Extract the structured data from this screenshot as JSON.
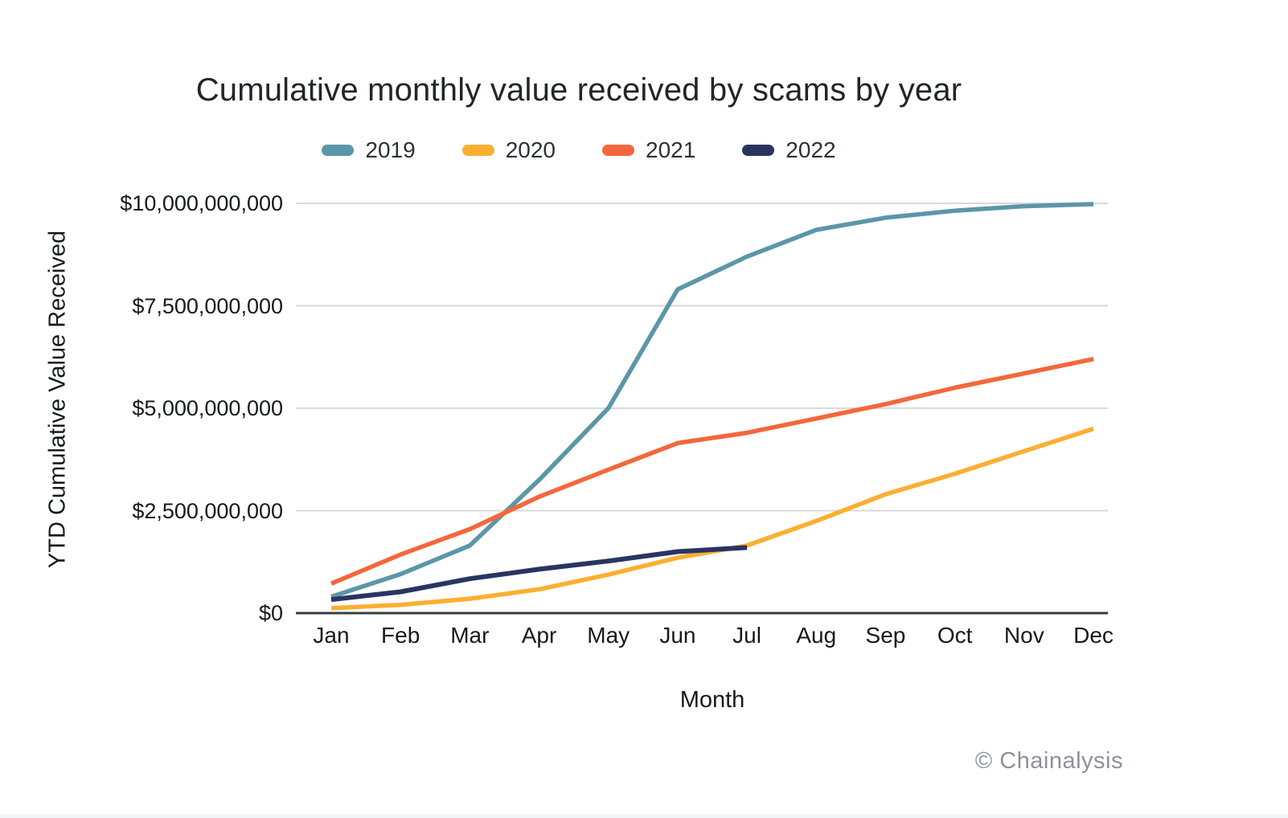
{
  "footer": {
    "credit": "© Chainalysis"
  },
  "chart_data": {
    "type": "line",
    "title": "Cumulative monthly value received by scams by year",
    "xlabel": "Month",
    "ylabel": "YTD Cumulative Value Received",
    "categories": [
      "Jan",
      "Feb",
      "Mar",
      "Apr",
      "May",
      "Jun",
      "Jul",
      "Aug",
      "Sep",
      "Oct",
      "Nov",
      "Dec"
    ],
    "y_axis": {
      "min": 0,
      "max": 10000000000,
      "tick_values": [
        0,
        2500000000,
        5000000000,
        7500000000,
        10000000000
      ],
      "tick_labels": [
        "$0",
        "$2,500,000,000",
        "$5,000,000,000",
        "$7,500,000,000",
        "$10,000,000,000"
      ]
    },
    "grid": "horizontal",
    "legend_position": "top",
    "series": [
      {
        "name": "2019",
        "color": "#5b96a9",
        "values": [
          400000000,
          950000000,
          1650000000,
          3250000000,
          5000000000,
          7900000000,
          8700000000,
          9350000000,
          9650000000,
          9820000000,
          9930000000,
          9980000000
        ]
      },
      {
        "name": "2020",
        "color": "#fbaf31",
        "values": [
          120000000,
          200000000,
          350000000,
          580000000,
          940000000,
          1350000000,
          1650000000,
          2250000000,
          2900000000,
          3400000000,
          3950000000,
          4500000000
        ]
      },
      {
        "name": "2021",
        "color": "#f4673c",
        "values": [
          720000000,
          1430000000,
          2050000000,
          2840000000,
          3500000000,
          4150000000,
          4400000000,
          4750000000,
          5100000000,
          5500000000,
          5850000000,
          6200000000
        ]
      },
      {
        "name": "2022",
        "color": "#293561",
        "values": [
          330000000,
          520000000,
          840000000,
          1070000000,
          1270000000,
          1500000000,
          1600000000
        ]
      }
    ]
  }
}
